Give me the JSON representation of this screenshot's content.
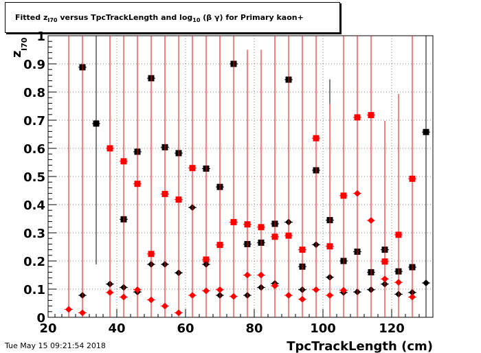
{
  "header": {
    "title_prefix": "Fitted  z",
    "title_sub_1": "I70",
    "title_mid": "  versus TpcTrackLength and log",
    "title_sub_2": "10",
    "title_suffix": " (β γ) for Primary kaon+"
  },
  "footer": {
    "timestamp": "Tue May 15 09:21:54 2018"
  },
  "chart_data": {
    "type": "scatter",
    "title": "Fitted z_I70 versus TpcTrackLength and log10 (β γ) for Primary kaon+",
    "xlabel": "TpcTrackLength (cm)",
    "ylabel": "z",
    "ylabel_sub": "I70",
    "xlim": [
      20,
      132
    ],
    "ylim": [
      0,
      1
    ],
    "x_ticks": [
      20,
      40,
      60,
      80,
      100,
      120
    ],
    "y_ticks": [
      0,
      0.1,
      0.2,
      0.3,
      0.4,
      0.5,
      0.6,
      0.7,
      0.8,
      0.9,
      1
    ],
    "y_tick_labels": [
      "0",
      "0.1",
      "0.2",
      "0.3",
      "0.4",
      "0.5",
      "0.6",
      "0.7",
      "0.8",
      "0.9",
      "1"
    ],
    "x_tick_labels": [
      "20",
      "40",
      "60",
      "80",
      "100",
      "120"
    ],
    "grid": true,
    "series": [
      {
        "marker": "square",
        "color": "#000000",
        "points": [
          {
            "x": 30,
            "y": 0.888,
            "err": 0.5
          },
          {
            "x": 34,
            "y": 0.688,
            "err": 0.5
          },
          {
            "x": 42,
            "y": 0.348,
            "err": 0.03
          },
          {
            "x": 46,
            "y": 0.588,
            "err": 0.5
          },
          {
            "x": 50,
            "y": 0.849,
            "err": 0.5
          },
          {
            "x": 54,
            "y": 0.604,
            "err": 0.02
          },
          {
            "x": 58,
            "y": 0.583,
            "err": 0.02
          },
          {
            "x": 66,
            "y": 0.528,
            "err": 0.03
          },
          {
            "x": 70,
            "y": 0.463,
            "err": 0.03
          },
          {
            "x": 74,
            "y": 0.9,
            "err": 0.5
          },
          {
            "x": 78,
            "y": 0.26,
            "err": 0.03
          },
          {
            "x": 82,
            "y": 0.265,
            "err": 0.03
          },
          {
            "x": 86,
            "y": 0.332,
            "err": 0.58
          },
          {
            "x": 90,
            "y": 0.844,
            "err": 0.5
          },
          {
            "x": 94,
            "y": 0.18,
            "err": 0.03
          },
          {
            "x": 98,
            "y": 0.522,
            "err": 0.5
          },
          {
            "x": 102,
            "y": 0.345,
            "err": 0.5
          },
          {
            "x": 106,
            "y": 0.2,
            "err": 0.03
          },
          {
            "x": 110,
            "y": 0.233,
            "err": 0.03
          },
          {
            "x": 114,
            "y": 0.16,
            "err": 0.03
          },
          {
            "x": 118,
            "y": 0.24,
            "err": 0.03
          },
          {
            "x": 122,
            "y": 0.163,
            "err": 0.03
          },
          {
            "x": 126,
            "y": 0.178,
            "err": 0.03
          },
          {
            "x": 130,
            "y": 0.658,
            "err": 0.5
          }
        ]
      },
      {
        "marker": "square",
        "color": "#ff0000",
        "points": [
          {
            "x": 38,
            "y": 0.6,
            "err": 0.5
          },
          {
            "x": 42,
            "y": 0.554,
            "err": 0.5
          },
          {
            "x": 46,
            "y": 0.474,
            "err": 0.5
          },
          {
            "x": 50,
            "y": 0.225,
            "err": 0.5
          },
          {
            "x": 54,
            "y": 0.438,
            "err": 0.5
          },
          {
            "x": 58,
            "y": 0.418,
            "err": 0.5
          },
          {
            "x": 62,
            "y": 0.53,
            "err": 0.5
          },
          {
            "x": 66,
            "y": 0.205,
            "err": 0.5
          },
          {
            "x": 70,
            "y": 0.257,
            "err": 0.5
          },
          {
            "x": 74,
            "y": 0.338,
            "err": 0.5
          },
          {
            "x": 78,
            "y": 0.33,
            "err": 0.5
          },
          {
            "x": 82,
            "y": 0.32,
            "err": 0.5
          },
          {
            "x": 86,
            "y": 0.286,
            "err": 0.5
          },
          {
            "x": 90,
            "y": 0.29,
            "err": 0.5
          },
          {
            "x": 94,
            "y": 0.24,
            "err": 0.5
          },
          {
            "x": 98,
            "y": 0.636,
            "err": 0.5
          },
          {
            "x": 102,
            "y": 0.252,
            "err": 0.5
          },
          {
            "x": 106,
            "y": 0.432,
            "err": 0.5
          },
          {
            "x": 110,
            "y": 0.71,
            "err": 0.5
          },
          {
            "x": 114,
            "y": 0.718,
            "err": 0.5
          },
          {
            "x": 118,
            "y": 0.198,
            "err": 0.5
          },
          {
            "x": 122,
            "y": 0.293,
            "err": 0.5
          },
          {
            "x": 126,
            "y": 0.492,
            "err": 0.5
          }
        ]
      },
      {
        "marker": "diamond",
        "color": "#000000",
        "points": [
          {
            "x": 30,
            "y": 0.078,
            "err": 0.5
          },
          {
            "x": 38,
            "y": 0.118,
            "err": 0.5
          },
          {
            "x": 42,
            "y": 0.106,
            "err": 0.5
          },
          {
            "x": 46,
            "y": 0.09,
            "err": 0.5
          },
          {
            "x": 50,
            "y": 0.188,
            "err": 0.5
          },
          {
            "x": 54,
            "y": 0.188,
            "err": 0.5
          },
          {
            "x": 58,
            "y": 0.158,
            "err": 0.5
          },
          {
            "x": 62,
            "y": 0.39,
            "err": 0.5
          },
          {
            "x": 66,
            "y": 0.188,
            "err": 0.5
          },
          {
            "x": 70,
            "y": 0.078,
            "err": 0.5
          },
          {
            "x": 78,
            "y": 0.078,
            "err": 0.5
          },
          {
            "x": 82,
            "y": 0.106,
            "err": 0.5
          },
          {
            "x": 86,
            "y": 0.12,
            "err": 0.5
          },
          {
            "x": 90,
            "y": 0.338,
            "err": 0.5
          },
          {
            "x": 94,
            "y": 0.098,
            "err": 0.5
          },
          {
            "x": 98,
            "y": 0.258,
            "err": 0.5
          },
          {
            "x": 102,
            "y": 0.142,
            "err": 0.5
          },
          {
            "x": 106,
            "y": 0.088,
            "err": 0.5
          },
          {
            "x": 110,
            "y": 0.09,
            "err": 0.5
          },
          {
            "x": 114,
            "y": 0.098,
            "err": 0.5
          },
          {
            "x": 118,
            "y": 0.118,
            "err": 0.5
          },
          {
            "x": 122,
            "y": 0.082,
            "err": 0.5
          },
          {
            "x": 126,
            "y": 0.088,
            "err": 0.5
          },
          {
            "x": 130,
            "y": 0.122,
            "err": 0.5
          }
        ]
      },
      {
        "marker": "diamond",
        "color": "#ff0000",
        "points": [
          {
            "x": 26,
            "y": 0.028,
            "err": 1.0
          },
          {
            "x": 30,
            "y": 0.016,
            "err": 1.0
          },
          {
            "x": 38,
            "y": 0.088,
            "err": 1.0
          },
          {
            "x": 42,
            "y": 0.072,
            "err": 1.0
          },
          {
            "x": 46,
            "y": 0.098,
            "err": 1.0
          },
          {
            "x": 50,
            "y": 0.062,
            "err": 1.0
          },
          {
            "x": 54,
            "y": 0.04,
            "err": 1.0
          },
          {
            "x": 58,
            "y": 0.016,
            "err": 1.0
          },
          {
            "x": 62,
            "y": 0.078,
            "err": 1.0
          },
          {
            "x": 66,
            "y": 0.094,
            "err": 1.0
          },
          {
            "x": 70,
            "y": 0.098,
            "err": 1.0
          },
          {
            "x": 74,
            "y": 0.074,
            "err": 0.95
          },
          {
            "x": 78,
            "y": 0.15,
            "err": 0.8
          },
          {
            "x": 82,
            "y": 0.15,
            "err": 0.8
          },
          {
            "x": 86,
            "y": 0.112,
            "err": 1.0
          },
          {
            "x": 90,
            "y": 0.078,
            "err": 1.0
          },
          {
            "x": 94,
            "y": 0.064,
            "err": 1.0
          },
          {
            "x": 98,
            "y": 0.098,
            "err": 1.0
          },
          {
            "x": 102,
            "y": 0.078,
            "err": 0.68
          },
          {
            "x": 106,
            "y": 0.096,
            "err": 1.0
          },
          {
            "x": 110,
            "y": 0.44,
            "err": 1.0
          },
          {
            "x": 114,
            "y": 0.344,
            "err": 1.0
          },
          {
            "x": 118,
            "y": 0.136,
            "err": 0.52
          },
          {
            "x": 122,
            "y": 0.124,
            "err": 0.61
          },
          {
            "x": 126,
            "y": 0.072,
            "err": 1.0
          }
        ]
      }
    ]
  }
}
